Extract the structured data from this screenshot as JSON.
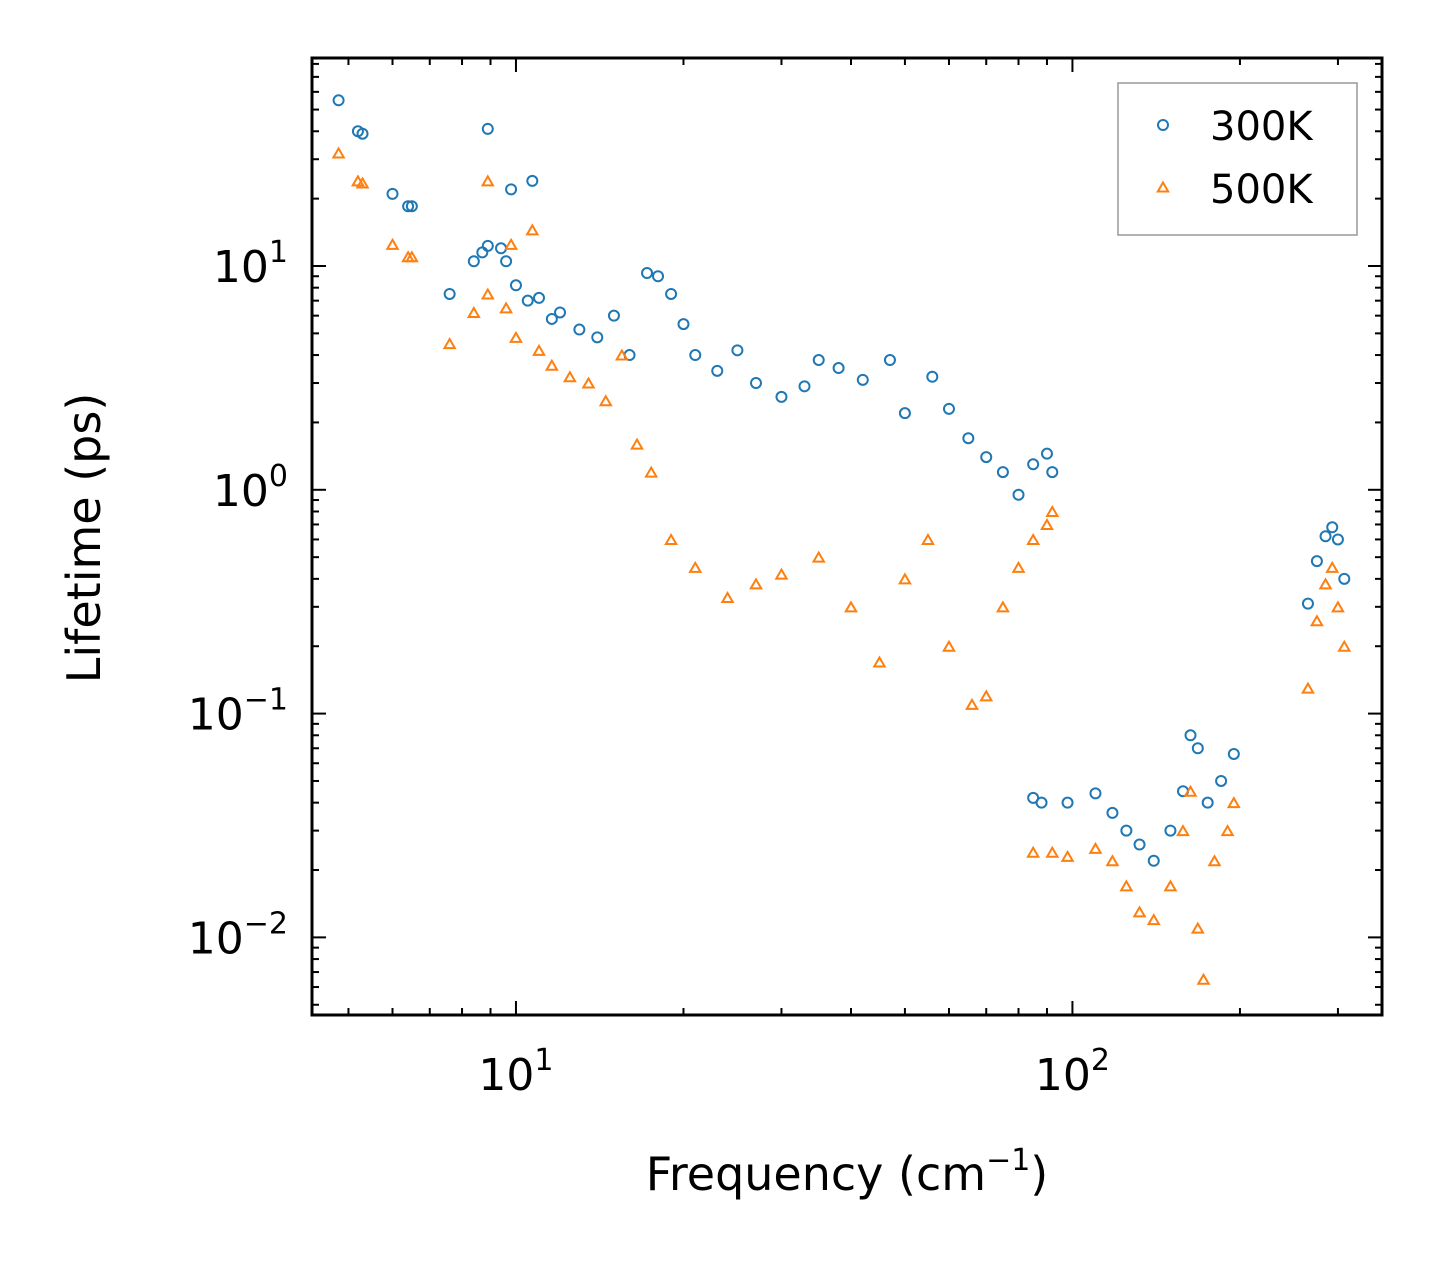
{
  "chart_data": {
    "type": "scatter",
    "xscale": "log",
    "yscale": "log",
    "xlabel": {
      "base": "Frequency (cm",
      "sup": "−1",
      "close": ")"
    },
    "ylabel": "Lifetime (ps)",
    "xlim": [
      4.3,
      360
    ],
    "ylim": [
      0.0045,
      85
    ],
    "xticks": [
      {
        "base": "10",
        "exp": "1",
        "value": 10
      },
      {
        "base": "10",
        "exp": "2",
        "value": 100
      }
    ],
    "yticks": [
      {
        "base": "10",
        "exp": "1",
        "value": 10
      },
      {
        "base": "10",
        "exp": "0",
        "value": 1
      },
      {
        "base": "10",
        "exp": "−1",
        "value": 0.1
      },
      {
        "base": "10",
        "exp": "−2",
        "value": 0.01
      }
    ],
    "legend": {
      "location": "top-right"
    },
    "series": [
      {
        "name": "300K",
        "marker": "circle-open",
        "color": "#1f77b4",
        "points": [
          [
            4.8,
            55
          ],
          [
            5.2,
            40
          ],
          [
            5.3,
            39
          ],
          [
            6.0,
            21
          ],
          [
            6.4,
            18.5
          ],
          [
            6.5,
            18.5
          ],
          [
            7.6,
            7.5
          ],
          [
            8.4,
            10.5
          ],
          [
            8.7,
            11.5
          ],
          [
            8.9,
            41
          ],
          [
            8.9,
            12.3
          ],
          [
            9.4,
            12.0
          ],
          [
            9.6,
            10.5
          ],
          [
            9.8,
            22
          ],
          [
            10.0,
            8.2
          ],
          [
            10.5,
            7.0
          ],
          [
            10.7,
            24
          ],
          [
            11.0,
            7.2
          ],
          [
            11.6,
            5.8
          ],
          [
            12.0,
            6.2
          ],
          [
            13.0,
            5.2
          ],
          [
            14.0,
            4.8
          ],
          [
            15.0,
            6.0
          ],
          [
            16.0,
            4.0
          ],
          [
            17.2,
            9.3
          ],
          [
            18.0,
            9.0
          ],
          [
            19.0,
            7.5
          ],
          [
            20.0,
            5.5
          ],
          [
            21.0,
            4.0
          ],
          [
            23.0,
            3.4
          ],
          [
            25.0,
            4.2
          ],
          [
            27.0,
            3.0
          ],
          [
            30.0,
            2.6
          ],
          [
            33.0,
            2.9
          ],
          [
            35.0,
            3.8
          ],
          [
            38.0,
            3.5
          ],
          [
            42.0,
            3.1
          ],
          [
            47.0,
            3.8
          ],
          [
            50.0,
            2.2
          ],
          [
            56.0,
            3.2
          ],
          [
            60.0,
            2.3
          ],
          [
            65.0,
            1.7
          ],
          [
            70.0,
            1.4
          ],
          [
            75.0,
            1.2
          ],
          [
            80.0,
            0.95
          ],
          [
            85.0,
            1.3
          ],
          [
            90.0,
            1.45
          ],
          [
            92.0,
            1.2
          ],
          [
            85.0,
            0.042
          ],
          [
            88.0,
            0.04
          ],
          [
            98.0,
            0.04
          ],
          [
            110.0,
            0.044
          ],
          [
            118.0,
            0.036
          ],
          [
            125.0,
            0.03
          ],
          [
            132.0,
            0.026
          ],
          [
            140.0,
            0.022
          ],
          [
            150.0,
            0.03
          ],
          [
            158.0,
            0.045
          ],
          [
            163.0,
            0.08
          ],
          [
            168.0,
            0.07
          ],
          [
            175.0,
            0.04
          ],
          [
            185.0,
            0.05
          ],
          [
            195.0,
            0.066
          ],
          [
            265.0,
            0.31
          ],
          [
            275.0,
            0.48
          ],
          [
            285.0,
            0.62
          ],
          [
            293.0,
            0.68
          ],
          [
            300.0,
            0.6
          ],
          [
            308.0,
            0.4
          ]
        ]
      },
      {
        "name": "500K",
        "marker": "triangle-open",
        "color": "#ff7f0e",
        "points": [
          [
            4.8,
            32
          ],
          [
            5.2,
            24
          ],
          [
            5.3,
            23.5
          ],
          [
            6.0,
            12.5
          ],
          [
            6.4,
            11.0
          ],
          [
            6.5,
            11.0
          ],
          [
            7.6,
            4.5
          ],
          [
            8.4,
            6.2
          ],
          [
            8.9,
            24
          ],
          [
            8.9,
            7.5
          ],
          [
            9.6,
            6.5
          ],
          [
            9.8,
            12.5
          ],
          [
            10.0,
            4.8
          ],
          [
            10.7,
            14.5
          ],
          [
            11.0,
            4.2
          ],
          [
            11.6,
            3.6
          ],
          [
            12.5,
            3.2
          ],
          [
            13.5,
            3.0
          ],
          [
            14.5,
            2.5
          ],
          [
            15.5,
            4.0
          ],
          [
            16.5,
            1.6
          ],
          [
            17.5,
            1.2
          ],
          [
            19.0,
            0.6
          ],
          [
            21.0,
            0.45
          ],
          [
            24.0,
            0.33
          ],
          [
            27.0,
            0.38
          ],
          [
            30.0,
            0.42
          ],
          [
            35.0,
            0.5
          ],
          [
            40.0,
            0.3
          ],
          [
            45.0,
            0.17
          ],
          [
            50.0,
            0.4
          ],
          [
            55.0,
            0.6
          ],
          [
            60.0,
            0.2
          ],
          [
            66.0,
            0.11
          ],
          [
            70.0,
            0.12
          ],
          [
            75.0,
            0.3
          ],
          [
            80.0,
            0.45
          ],
          [
            85.0,
            0.6
          ],
          [
            90.0,
            0.7
          ],
          [
            92.0,
            0.8
          ],
          [
            85.0,
            0.024
          ],
          [
            92.0,
            0.024
          ],
          [
            98.0,
            0.023
          ],
          [
            110.0,
            0.025
          ],
          [
            118.0,
            0.022
          ],
          [
            125.0,
            0.017
          ],
          [
            132.0,
            0.013
          ],
          [
            140.0,
            0.012
          ],
          [
            150.0,
            0.017
          ],
          [
            158.0,
            0.03
          ],
          [
            163.0,
            0.045
          ],
          [
            168.0,
            0.011
          ],
          [
            172.0,
            0.0065
          ],
          [
            180.0,
            0.022
          ],
          [
            190.0,
            0.03
          ],
          [
            195.0,
            0.04
          ],
          [
            265.0,
            0.13
          ],
          [
            275.0,
            0.26
          ],
          [
            285.0,
            0.38
          ],
          [
            293.0,
            0.45
          ],
          [
            300.0,
            0.3
          ],
          [
            308.0,
            0.2
          ]
        ]
      }
    ]
  }
}
